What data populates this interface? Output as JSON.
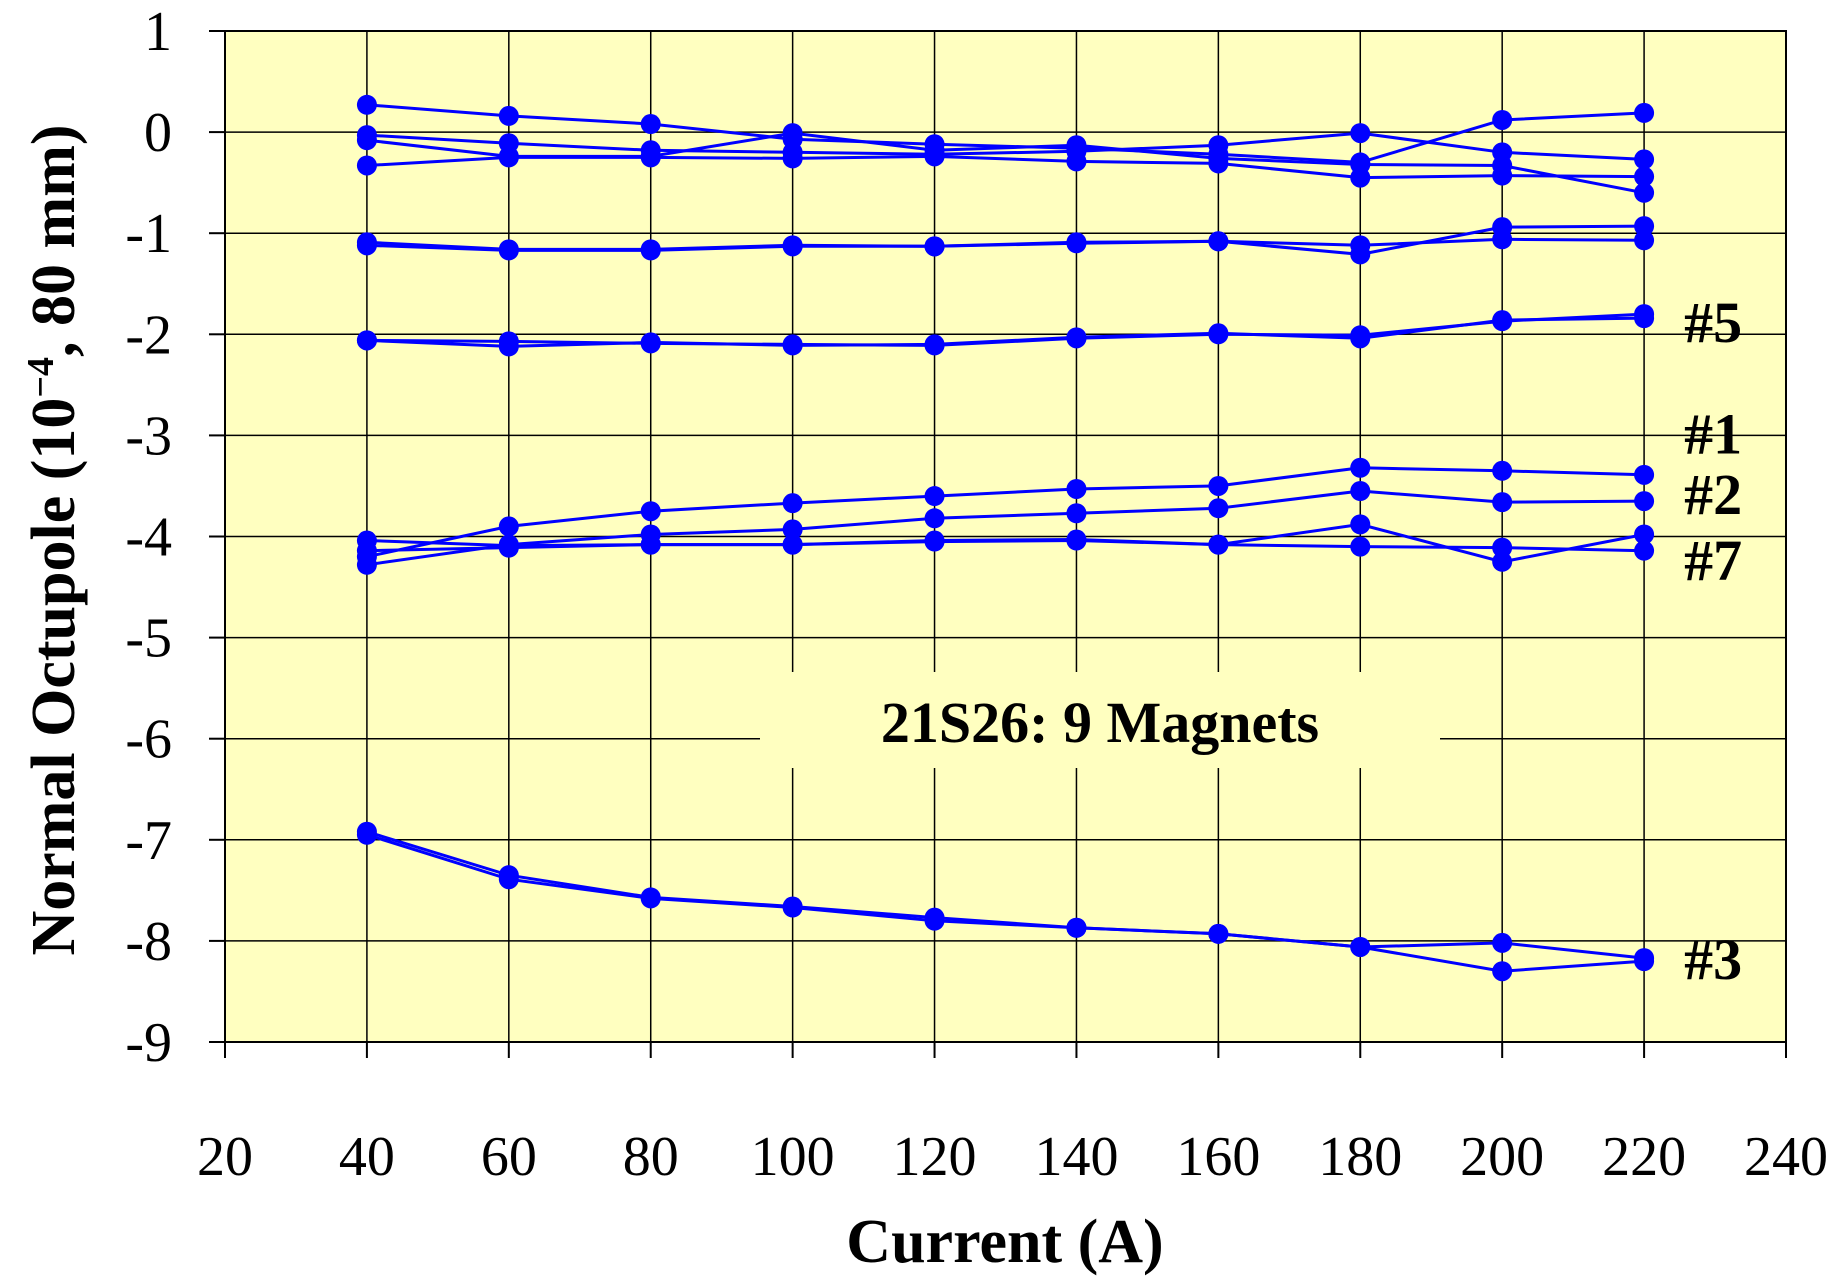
{
  "chart_data": {
    "type": "line",
    "title": "",
    "xlabel": "Current (A)",
    "ylabel_main": "Normal Octupole (10",
    "ylabel_sup": "−4",
    "ylabel_tail": ", 80 mm)",
    "xlim": [
      20,
      240
    ],
    "ylim": [
      -9,
      1
    ],
    "xticks": [
      20,
      40,
      60,
      80,
      100,
      120,
      140,
      160,
      180,
      200,
      220,
      240
    ],
    "yticks": [
      1,
      0,
      -1,
      -2,
      -3,
      -4,
      -5,
      -6,
      -7,
      -8,
      -9
    ],
    "ytick_labels": [
      "1",
      "0",
      "-1",
      "-2",
      "-3",
      "-4",
      "-5",
      "-6",
      "-7",
      "-8",
      "-9"
    ],
    "grid": true,
    "plot_background": "#ffffc0",
    "series_color": "#0000ff",
    "annotation": "21S26: 9 Magnets",
    "labels": [
      {
        "text": "#5",
        "x": 220,
        "y": -1.9
      },
      {
        "text": "#1",
        "x": 220,
        "y": -3.0
      },
      {
        "text": "#2",
        "x": 220,
        "y": -3.6
      },
      {
        "text": "#7",
        "x": 220,
        "y": -4.25
      },
      {
        "text": "#3",
        "x": 220,
        "y": -8.2
      }
    ],
    "series": [
      {
        "x": [
          40,
          60,
          80,
          100,
          120,
          140,
          160,
          180,
          200,
          220
        ],
        "y": [
          0.27,
          0.16,
          0.08,
          -0.07,
          -0.12,
          -0.16,
          -0.22,
          -0.3,
          0.12,
          0.19
        ]
      },
      {
        "x": [
          40,
          60,
          80,
          100,
          120,
          140,
          160,
          180,
          200,
          220
        ],
        "y": [
          -0.03,
          -0.11,
          -0.18,
          -0.2,
          -0.22,
          -0.19,
          -0.13,
          -0.01,
          -0.2,
          -0.27
        ]
      },
      {
        "x": [
          40,
          60,
          80,
          100,
          120,
          140,
          160,
          180,
          200,
          220
        ],
        "y": [
          -0.33,
          -0.25,
          -0.25,
          -0.26,
          -0.24,
          -0.29,
          -0.31,
          -0.45,
          -0.43,
          -0.44
        ]
      },
      {
        "x": [
          40,
          60,
          80,
          100,
          120,
          140,
          160,
          180,
          200,
          220
        ],
        "y": [
          -0.08,
          -0.24,
          -0.24,
          -0.01,
          -0.18,
          -0.13,
          -0.26,
          -0.32,
          -0.33,
          -0.6
        ]
      },
      {
        "x": [
          40,
          60,
          80,
          100,
          120,
          140,
          160,
          180,
          200,
          220
        ],
        "y": [
          -1.12,
          -1.17,
          -1.17,
          -1.13,
          -1.13,
          -1.1,
          -1.08,
          -1.21,
          -0.94,
          -0.93
        ]
      },
      {
        "x": [
          40,
          60,
          80,
          100,
          120,
          140,
          160,
          180,
          200,
          220
        ],
        "y": [
          -1.09,
          -1.16,
          -1.16,
          -1.12,
          -1.13,
          -1.09,
          -1.08,
          -1.12,
          -1.06,
          -1.07
        ]
      },
      {
        "x": [
          40,
          60,
          80,
          100,
          120,
          140,
          160,
          180,
          200,
          220
        ],
        "y": [
          -2.06,
          -2.07,
          -2.09,
          -2.1,
          -2.11,
          -2.04,
          -2.0,
          -2.01,
          -1.87,
          -1.8
        ]
      },
      {
        "x": [
          40,
          60,
          80,
          100,
          120,
          140,
          160,
          180,
          200,
          220
        ],
        "y": [
          -2.06,
          -2.12,
          -2.08,
          -2.11,
          -2.1,
          -2.03,
          -1.99,
          -2.04,
          -1.86,
          -1.84
        ]
      },
      {
        "x": [
          40,
          60,
          80,
          100,
          120,
          140,
          160,
          180,
          200,
          220
        ],
        "y": [
          -4.2,
          -3.9,
          -3.75,
          -3.67,
          -3.6,
          -3.53,
          -3.5,
          -3.32,
          -3.35,
          -3.39
        ]
      },
      {
        "x": [
          40,
          60,
          80,
          100,
          120,
          140,
          160,
          180,
          200,
          220
        ],
        "y": [
          -4.28,
          -4.08,
          -3.98,
          -3.93,
          -3.82,
          -3.77,
          -3.72,
          -3.55,
          -3.66,
          -3.65
        ]
      },
      {
        "x": [
          40,
          60,
          80,
          100,
          120,
          140,
          160,
          180,
          200,
          220
        ],
        "y": [
          -4.04,
          -4.09,
          -4.08,
          -4.08,
          -4.04,
          -4.03,
          -4.08,
          -3.88,
          -4.25,
          -3.98
        ]
      },
      {
        "x": [
          40,
          60,
          80,
          100,
          120,
          140,
          160,
          180,
          200,
          220
        ],
        "y": [
          -4.14,
          -4.11,
          -4.08,
          -4.08,
          -4.05,
          -4.04,
          -4.08,
          -4.1,
          -4.11,
          -4.14
        ]
      },
      {
        "x": [
          40,
          60,
          80,
          100,
          120,
          140,
          160,
          180,
          200,
          220
        ],
        "y": [
          -6.92,
          -7.35,
          -7.57,
          -7.66,
          -7.77,
          -7.87,
          -7.93,
          -8.06,
          -8.3,
          -8.2
        ]
      },
      {
        "x": [
          40,
          60,
          80,
          100,
          120,
          140,
          160,
          180,
          200,
          220
        ],
        "y": [
          -6.95,
          -7.39,
          -7.58,
          -7.67,
          -7.8,
          -7.87,
          -7.93,
          -8.06,
          -8.02,
          -8.17
        ]
      }
    ]
  }
}
